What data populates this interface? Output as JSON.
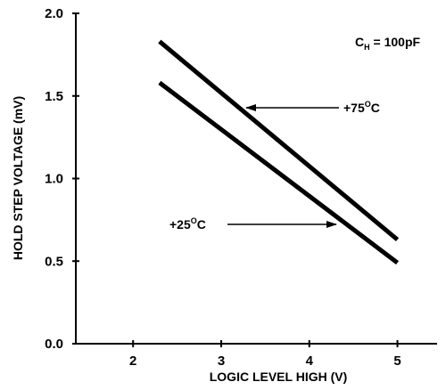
{
  "chart_data": {
    "type": "line",
    "xlabel": "LOGIC LEVEL HIGH (V)",
    "ylabel": "HOLD STEP VOLTAGE (mV)",
    "xlim": [
      1.35,
      5.45
    ],
    "ylim": [
      0.0,
      2.0
    ],
    "x_ticks": [
      2,
      3,
      4,
      5
    ],
    "x_tick_labels": [
      "2",
      "3",
      "4",
      "5"
    ],
    "y_ticks": [
      0.0,
      0.5,
      1.0,
      1.5,
      2.0
    ],
    "y_tick_labels": [
      "0.0",
      "0.5",
      "1.0",
      "1.5",
      "2.0"
    ],
    "grid": false,
    "series": [
      {
        "name": "+75°C",
        "x": [
          2.3,
          5.0
        ],
        "y": [
          1.83,
          0.63
        ],
        "color": "#000000"
      },
      {
        "name": "+25°C",
        "x": [
          2.3,
          5.0
        ],
        "y": [
          1.58,
          0.49
        ],
        "color": "#000000"
      }
    ],
    "annotations": {
      "capacitance": {
        "main": "C",
        "sub": "H",
        "rest": " = 100pF"
      },
      "label_75": {
        "main": "+75",
        "sup": "O",
        "rest": "C"
      },
      "label_25": {
        "main": "+25",
        "sup": "O",
        "rest": "C"
      }
    }
  }
}
